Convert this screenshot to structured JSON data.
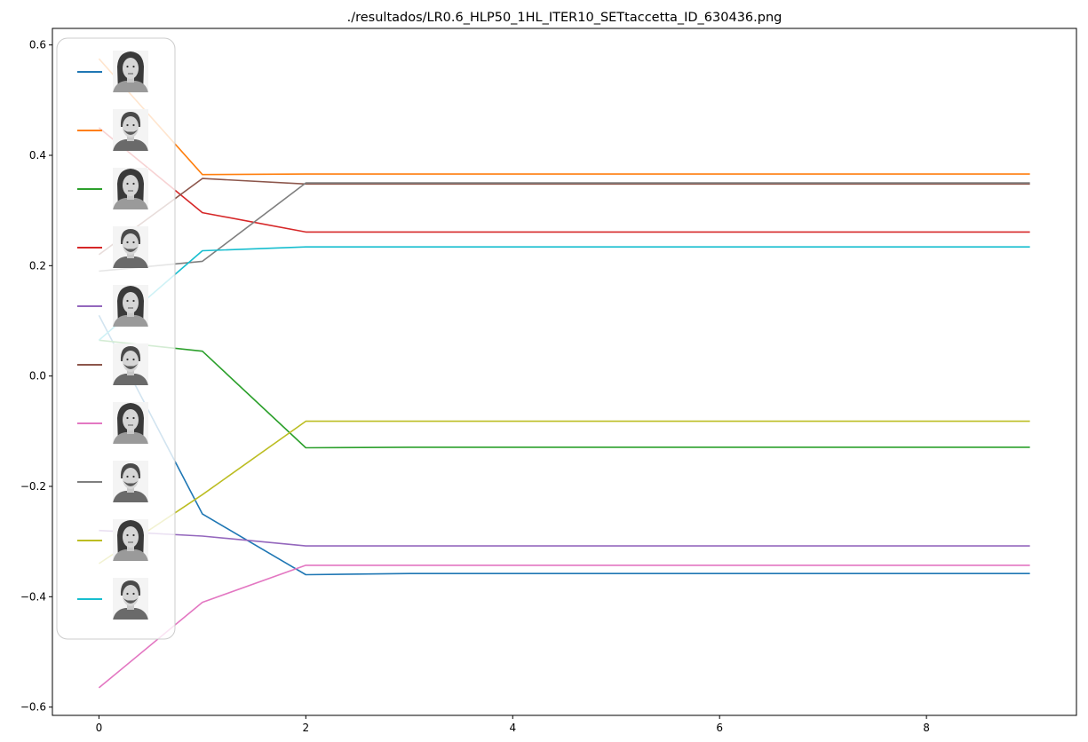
{
  "chart_data": {
    "type": "line",
    "title": "./resultados/LR0.6_HLP50_1HL_ITER10_SETtaccetta_ID_630436.png",
    "xlabel": "",
    "ylabel": "",
    "x": [
      0,
      1,
      2,
      3,
      4,
      5,
      6,
      7,
      8,
      9
    ],
    "xlim": [
      -0.45,
      9.45
    ],
    "ylim": [
      -0.615,
      0.63
    ],
    "xticks": [
      0,
      2,
      4,
      6,
      8
    ],
    "xtick_labels": [
      "0",
      "2",
      "4",
      "6",
      "8"
    ],
    "yticks": [
      -0.6,
      -0.4,
      -0.2,
      0.0,
      0.2,
      0.4,
      0.6
    ],
    "ytick_labels": [
      "−0.6",
      "−0.4",
      "−0.2",
      "0.0",
      "0.2",
      "0.4",
      "0.6"
    ],
    "grid": false,
    "legend": {
      "placement": "upper-left",
      "entries": "face thumbnails (no text labels)"
    },
    "series": [
      {
        "color": "#1f77b4",
        "face": "female",
        "values": [
          0.11,
          -0.25,
          -0.36,
          -0.358,
          -0.358,
          -0.358,
          -0.358,
          -0.358,
          -0.358,
          -0.358
        ]
      },
      {
        "color": "#ff7f0e",
        "face": "male",
        "values": [
          0.575,
          0.365,
          0.366,
          0.366,
          0.366,
          0.366,
          0.366,
          0.366,
          0.366,
          0.366
        ]
      },
      {
        "color": "#2ca02c",
        "face": "female",
        "values": [
          0.065,
          0.045,
          -0.13,
          -0.129,
          -0.129,
          -0.129,
          -0.129,
          -0.129,
          -0.129,
          -0.129
        ]
      },
      {
        "color": "#d62728",
        "face": "male",
        "values": [
          0.45,
          0.296,
          0.261,
          0.261,
          0.261,
          0.261,
          0.261,
          0.261,
          0.261,
          0.261
        ]
      },
      {
        "color": "#9467bd",
        "face": "female",
        "values": [
          -0.28,
          -0.29,
          -0.308,
          -0.308,
          -0.308,
          -0.308,
          -0.308,
          -0.308,
          -0.308,
          -0.308
        ]
      },
      {
        "color": "#8c564b",
        "face": "male",
        "values": [
          0.22,
          0.358,
          0.348,
          0.348,
          0.348,
          0.348,
          0.348,
          0.348,
          0.348,
          0.348
        ]
      },
      {
        "color": "#e377c2",
        "face": "female",
        "values": [
          -0.565,
          -0.41,
          -0.343,
          -0.343,
          -0.343,
          -0.343,
          -0.343,
          -0.343,
          -0.343,
          -0.343
        ]
      },
      {
        "color": "#7f7f7f",
        "face": "male",
        "values": [
          0.19,
          0.208,
          0.35,
          0.35,
          0.35,
          0.35,
          0.35,
          0.35,
          0.35,
          0.35
        ]
      },
      {
        "color": "#bcbd22",
        "face": "female",
        "values": [
          -0.34,
          -0.215,
          -0.082,
          -0.082,
          -0.082,
          -0.082,
          -0.082,
          -0.082,
          -0.082,
          -0.082
        ]
      },
      {
        "color": "#17becf",
        "face": "male",
        "values": [
          0.065,
          0.227,
          0.234,
          0.234,
          0.234,
          0.234,
          0.234,
          0.234,
          0.234,
          0.234
        ]
      }
    ]
  }
}
